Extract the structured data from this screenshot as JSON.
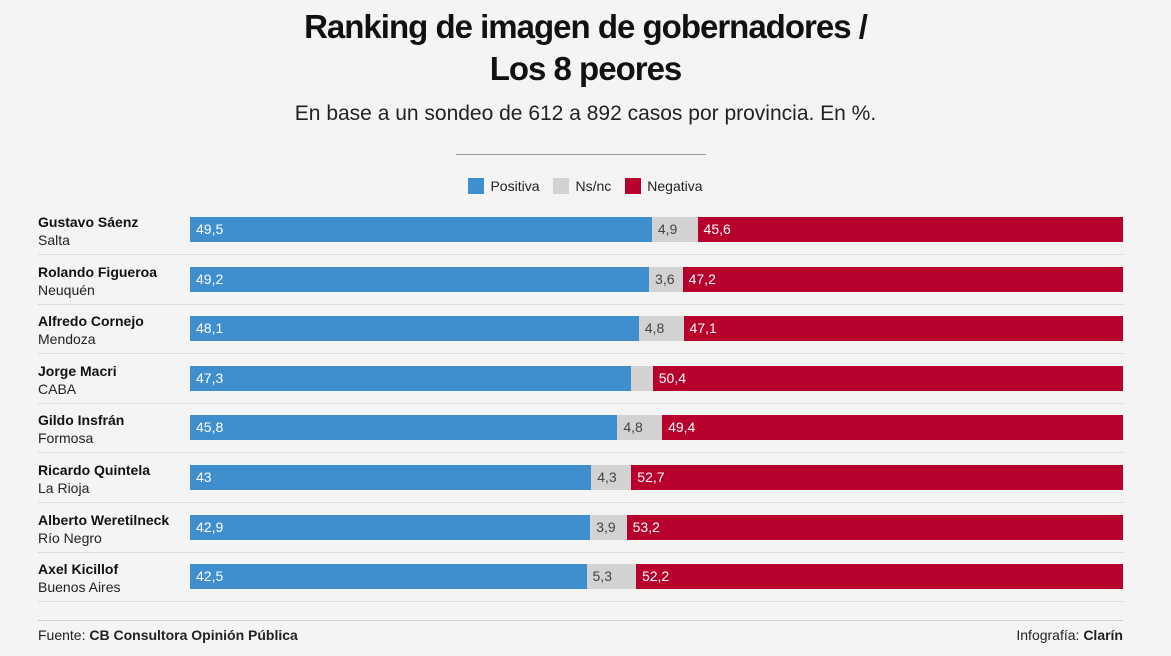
{
  "title_line1": "Ranking de imagen de gobernadores /",
  "title_line2": "Los 8 peores",
  "subtitle": "En base a un sondeo de 612 a 892 casos por provincia. En %.",
  "legend": [
    {
      "label": "Positiva",
      "color": "#3f8ecd"
    },
    {
      "label": "Ns/nc",
      "color": "#d2d2d2"
    },
    {
      "label": "Negativa",
      "color": "#b8002c"
    }
  ],
  "footer": {
    "source_prefix": "Fuente:",
    "source": "CB Consultora Opinión Pública",
    "credit_prefix": "Infografía:",
    "credit": "Clarín"
  },
  "chart_data": {
    "type": "bar",
    "stacked": true,
    "orientation": "horizontal",
    "title": "Ranking de imagen de gobernadores / Los 8 peores",
    "subtitle": "En base a un sondeo de 612 a 892 casos por provincia. En %.",
    "categories": [
      {
        "name": "Gustavo Sáenz",
        "province": "Salta"
      },
      {
        "name": "Rolando Figueroa",
        "province": "Neuquén"
      },
      {
        "name": "Alfredo Cornejo",
        "province": "Mendoza"
      },
      {
        "name": "Jorge Macri",
        "province": "CABA"
      },
      {
        "name": "Gildo Insfrán",
        "province": "Formosa"
      },
      {
        "name": "Ricardo Quintela",
        "province": "La Rioja"
      },
      {
        "name": "Alberto Weretilneck",
        "province": "Río Negro"
      },
      {
        "name": "Axel Kicillof",
        "province": "Buenos Aires"
      }
    ],
    "series": [
      {
        "name": "Positiva",
        "values": [
          49.5,
          49.2,
          48.1,
          47.3,
          45.8,
          43,
          42.9,
          42.5
        ],
        "labels": [
          "49,5",
          "49,2",
          "48,1",
          "47,3",
          "45,8",
          "43",
          "42,9",
          "42,5"
        ]
      },
      {
        "name": "Ns/nc",
        "values": [
          4.9,
          3.6,
          4.8,
          2.3,
          4.8,
          4.3,
          3.9,
          5.3
        ],
        "labels": [
          "4,9",
          "3,6",
          "4,8",
          "",
          "4,8",
          "4,3",
          "3,9",
          "5,3"
        ]
      },
      {
        "name": "Negativa",
        "values": [
          45.6,
          47.2,
          47.1,
          50.4,
          49.4,
          52.7,
          53.2,
          52.2
        ],
        "labels": [
          "45,6",
          "47,2",
          "47,1",
          "50,4",
          "49,4",
          "52,7",
          "53,2",
          "52,2"
        ]
      }
    ],
    "xlim": [
      0,
      100
    ],
    "legend_position": "top-center"
  }
}
